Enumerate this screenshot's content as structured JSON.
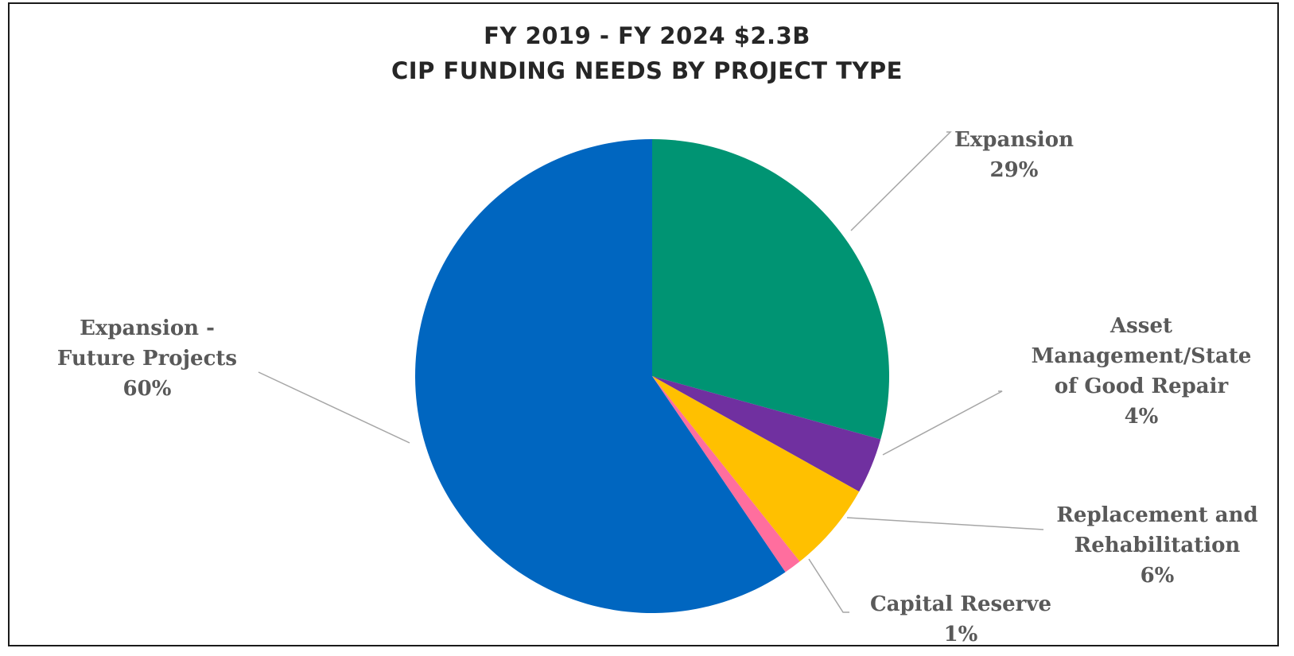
{
  "chart_data": {
    "type": "pie",
    "title": "FY 2019 - FY 2024 $2.3B",
    "subtitle": "CIP FUNDING NEEDS BY PROJECT TYPE",
    "slices": [
      {
        "name": "Expansion",
        "label_lines": [
          "Expansion"
        ],
        "percent_label": "29%",
        "value": 29.3,
        "color": "#009473"
      },
      {
        "name": "Asset Management/State of Good Repair",
        "label_lines": [
          "Asset",
          "Management/State",
          "of Good Repair"
        ],
        "percent_label": "4%",
        "value": 3.8,
        "color": "#7030A0"
      },
      {
        "name": "Replacement and Rehabilitation",
        "label_lines": [
          "Replacement and",
          "Rehabilitation"
        ],
        "percent_label": "6%",
        "value": 6.2,
        "color": "#FFC000"
      },
      {
        "name": "Capital Reserve",
        "label_lines": [
          "Capital Reserve"
        ],
        "percent_label": "1%",
        "value": 1.2,
        "color": "#FF6E9E"
      },
      {
        "name": "Expansion - Future Projects",
        "label_lines": [
          "Expansion -",
          "Future Projects"
        ],
        "percent_label": "60%",
        "value": 59.5,
        "color": "#0066C0"
      }
    ],
    "start_angle": "12 o'clock",
    "direction": "clockwise",
    "legend": "none",
    "label_style": "outside with leader lines"
  }
}
